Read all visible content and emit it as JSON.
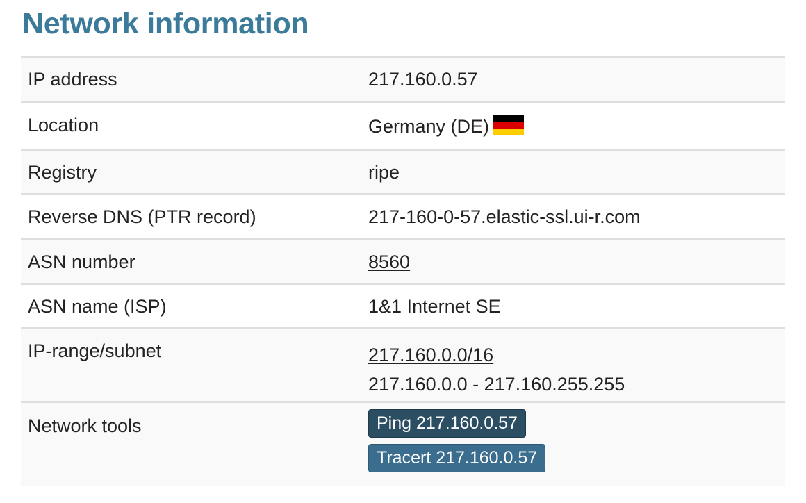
{
  "title": "Network information",
  "rows": [
    {
      "label": "IP address",
      "value": "217.160.0.57"
    },
    {
      "label": "Location",
      "value": "Germany (DE)",
      "flag": "de-flag"
    },
    {
      "label": "Registry",
      "value": "ripe"
    },
    {
      "label": "Reverse DNS (PTR record)",
      "value": "217-160-0-57.elastic-ssl.ui-r.com"
    },
    {
      "label": "ASN number",
      "value": "8560"
    },
    {
      "label": "ASN name (ISP)",
      "value": "1&1 Internet SE"
    },
    {
      "label": "IP-range/subnet",
      "value": "217.160.0.0/16",
      "range": "217.160.0.0 - 217.160.255.255"
    },
    {
      "label": "Network tools",
      "ping": "Ping 217.160.0.57",
      "tracert": "Tracert 217.160.0.57"
    }
  ],
  "colors": {
    "title": "#3b7a99",
    "ping_button": "#2b4e63",
    "tracert_button": "#3a6d8e"
  }
}
